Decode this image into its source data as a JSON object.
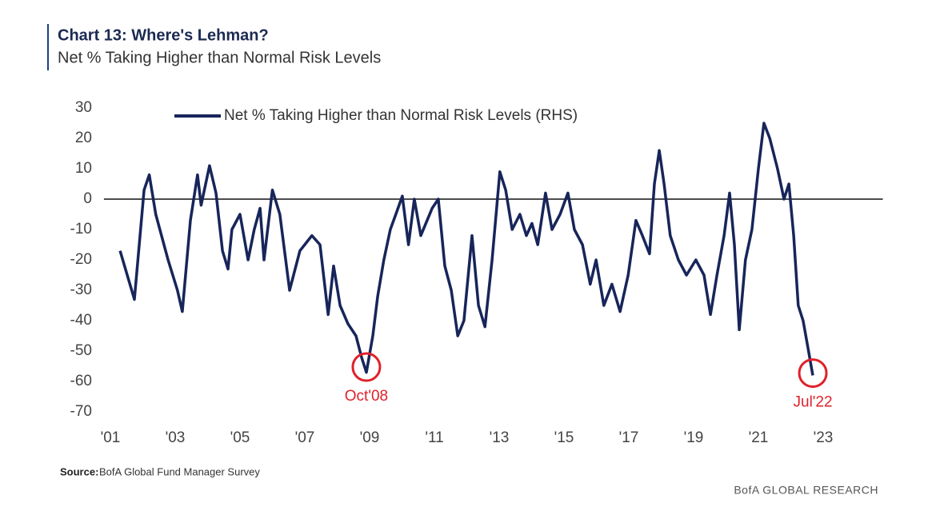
{
  "chart_data": {
    "type": "line",
    "title": "Chart 13: Where's Lehman?",
    "subtitle": "Net % Taking Higher than Normal Risk Levels",
    "source_label": "Source:",
    "source": "BofA Global Fund Manager Survey",
    "footer": "BofA GLOBAL RESEARCH",
    "xlim": [
      2000.8,
      2024.1
    ],
    "ylim": [
      -70,
      30
    ],
    "yticks": [
      30,
      20,
      10,
      0,
      -10,
      -20,
      -30,
      -40,
      -50,
      -60,
      -70
    ],
    "xticks": [
      {
        "value": 2001,
        "label": "'01"
      },
      {
        "value": 2003,
        "label": "'03"
      },
      {
        "value": 2005,
        "label": "'05"
      },
      {
        "value": 2007,
        "label": "'07"
      },
      {
        "value": 2009,
        "label": "'09"
      },
      {
        "value": 2011,
        "label": "'11"
      },
      {
        "value": 2013,
        "label": "'13"
      },
      {
        "value": 2015,
        "label": "'15"
      },
      {
        "value": 2017,
        "label": "'17"
      },
      {
        "value": 2019,
        "label": "'19"
      },
      {
        "value": 2021,
        "label": "'21"
      },
      {
        "value": 2023,
        "label": "'23"
      }
    ],
    "zero_line": true,
    "legend": "top-left",
    "x": [
      2001.3,
      2001.74,
      2002.04,
      2002.2,
      2002.4,
      2002.78,
      2003.07,
      2003.22,
      2003.47,
      2003.69,
      2003.8,
      2004.06,
      2004.26,
      2004.46,
      2004.63,
      2004.75,
      2005.0,
      2005.25,
      2005.44,
      2005.62,
      2005.74,
      2006.0,
      2006.23,
      2006.53,
      2006.85,
      2007.22,
      2007.47,
      2007.72,
      2007.89,
      2008.09,
      2008.33,
      2008.58,
      2008.75,
      2008.9,
      2009.1,
      2009.25,
      2009.44,
      2009.64,
      2009.81,
      2010.01,
      2010.2,
      2010.38,
      2010.58,
      2010.93,
      2011.12,
      2011.32,
      2011.52,
      2011.72,
      2011.91,
      2012.16,
      2012.36,
      2012.56,
      2012.78,
      2013.02,
      2013.2,
      2013.4,
      2013.64,
      2013.84,
      2014.01,
      2014.19,
      2014.43,
      2014.63,
      2014.88,
      2015.12,
      2015.32,
      2015.57,
      2015.81,
      2015.99,
      2016.23,
      2016.48,
      2016.73,
      2016.98,
      2017.22,
      2017.42,
      2017.64,
      2017.79,
      2017.94,
      2018.09,
      2018.28,
      2018.53,
      2018.78,
      2019.07,
      2019.32,
      2019.52,
      2019.72,
      2019.94,
      2020.11,
      2020.26,
      2020.41,
      2020.6,
      2020.8,
      2021.0,
      2021.17,
      2021.35,
      2021.59,
      2021.79,
      2021.94,
      2022.09,
      2022.23,
      2022.38,
      2022.53,
      2022.68
    ],
    "series": [
      {
        "name": "Net % Taking Higher than Normal Risk Levels (RHS)",
        "color": "#17255a",
        "values": [
          -17,
          -33,
          3,
          8,
          -5,
          -20,
          -30,
          -37,
          -7,
          8,
          -2,
          11,
          2,
          -17,
          -23,
          -10,
          -5,
          -20,
          -10,
          -3,
          -20,
          3,
          -5,
          -30,
          -17,
          -12,
          -15,
          -38,
          -22,
          -35,
          -41,
          -45,
          -52,
          -57,
          -45,
          -32,
          -20,
          -10,
          -5,
          1,
          -15,
          0,
          -12,
          -3,
          0,
          -22,
          -30,
          -45,
          -40,
          -12,
          -35,
          -42,
          -20,
          9,
          3,
          -10,
          -5,
          -12,
          -8,
          -15,
          2,
          -10,
          -5,
          2,
          -10,
          -15,
          -28,
          -20,
          -35,
          -28,
          -37,
          -25,
          -7,
          -12,
          -18,
          5,
          16,
          5,
          -12,
          -20,
          -25,
          -20,
          -25,
          -38,
          -25,
          -12,
          2,
          -15,
          -43,
          -20,
          -10,
          10,
          25,
          20,
          10,
          0,
          5,
          -12,
          -35,
          -40,
          -49,
          -58
        ]
      }
    ],
    "annotations": [
      {
        "text": "Oct'08",
        "x": 2008.9,
        "y": -55,
        "color": "#e0202a"
      },
      {
        "text": "Jul'22",
        "x": 2022.68,
        "y": -57,
        "color": "#e0202a"
      }
    ]
  }
}
